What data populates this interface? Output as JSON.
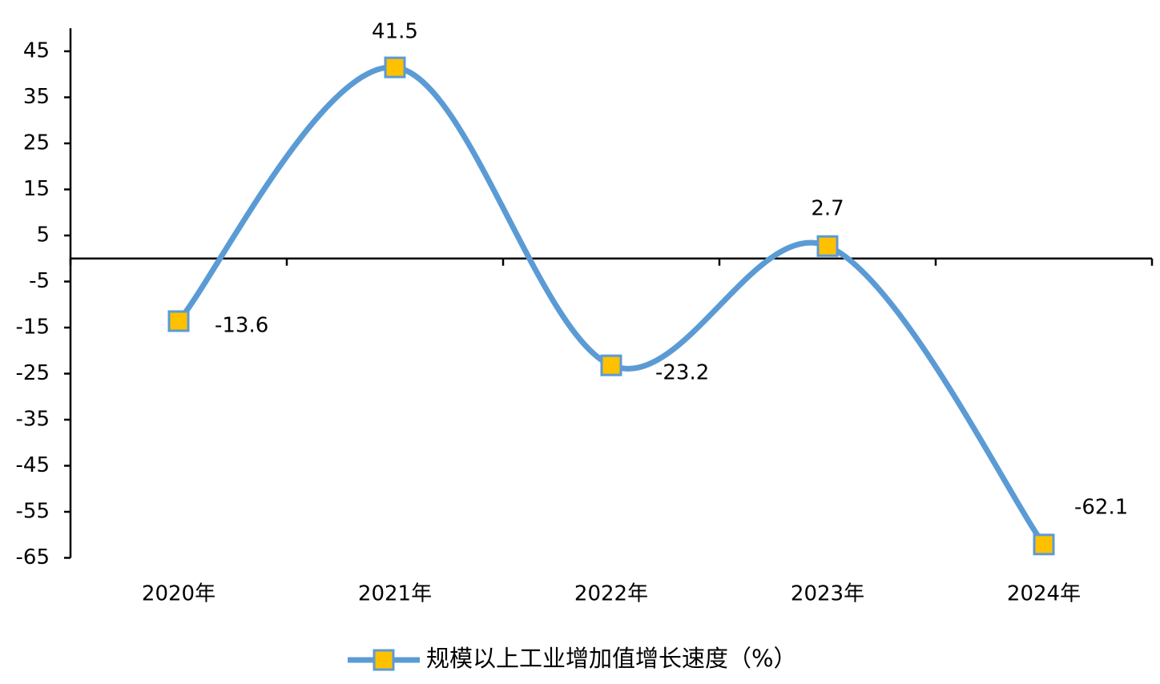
{
  "chart_data": {
    "type": "line",
    "categories": [
      "2020年",
      "2021年",
      "2022年",
      "2023年",
      "2024年"
    ],
    "series": [
      {
        "name": "规模以上工业增加值增长速度（%）",
        "color": "#5b9bd5",
        "marker_color": "#ffc000",
        "values": [
          -13.6,
          41.5,
          -23.2,
          2.7,
          -62.1
        ]
      }
    ],
    "ylim": [
      -65,
      50
    ],
    "yticks": [
      45,
      35,
      25,
      15,
      5,
      -5,
      -15,
      -25,
      -35,
      -45,
      -55,
      -65
    ],
    "grid": false,
    "smooth": true,
    "legend": "bottom"
  }
}
